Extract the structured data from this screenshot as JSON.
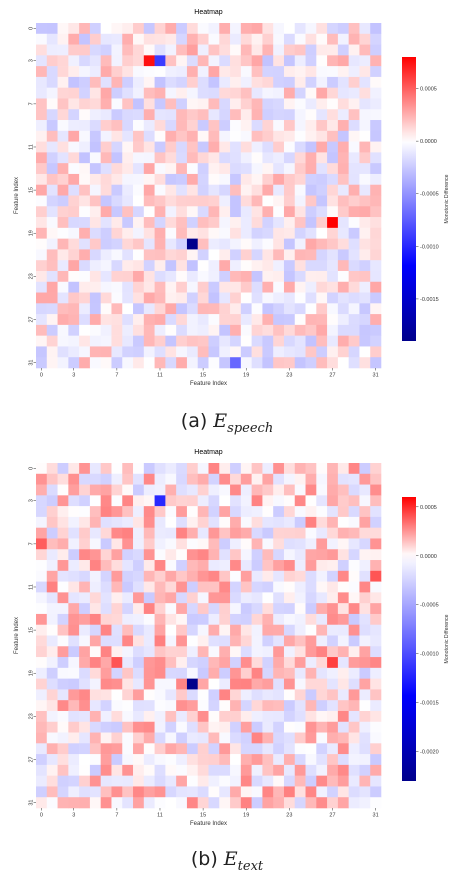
{
  "figure": {
    "panels": [
      {
        "caption_label": "(a)",
        "caption_symbol": "E",
        "caption_subscript": "speech"
      },
      {
        "caption_label": "(b)",
        "caption_symbol": "E",
        "caption_subscript": "text"
      }
    ]
  },
  "chart_data": [
    {
      "type": "heatmap",
      "title": "Heatmap",
      "xlabel": "Feature Index",
      "ylabel": "Feature Index",
      "x_tick_labels": [
        "0",
        "3",
        "7",
        "11",
        "15",
        "19",
        "23",
        "27",
        "31"
      ],
      "y_tick_labels": [
        "0",
        "3",
        "7",
        "11",
        "15",
        "19",
        "23",
        "27",
        "31"
      ],
      "grid_size": [
        32,
        32
      ],
      "colorbar": {
        "label": "Monotonic Difference",
        "ticks": [
          "0.0005",
          "0.0000",
          "-0.0005",
          "-0.0010",
          "-0.0015"
        ],
        "tick_values": [
          0.0005,
          0.0,
          -0.0005,
          -0.001,
          -0.0015
        ],
        "vmin": -0.0019,
        "vmax": 0.0008,
        "colormap": "bwr",
        "colors": {
          "min": "#00008b",
          "mid": "#ffffff",
          "max": "#ff0000"
        }
      },
      "noise_amplitude": 0.00028,
      "notable_cells": [
        {
          "row": 3,
          "col": 10,
          "value": 0.00075
        },
        {
          "row": 3,
          "col": 11,
          "value": -0.0009
        },
        {
          "row": 18,
          "col": 27,
          "value": 0.0008
        },
        {
          "row": 20,
          "col": 14,
          "value": -0.0019
        },
        {
          "row": 31,
          "col": 18,
          "value": -0.0007
        },
        {
          "row": 2,
          "col": 14,
          "value": 0.0003
        },
        {
          "row": 4,
          "col": 16,
          "value": 0.00028
        }
      ]
    },
    {
      "type": "heatmap",
      "title": "Heatmap",
      "xlabel": "Feature Index",
      "ylabel": "Feature Index",
      "x_tick_labels": [
        "0",
        "3",
        "7",
        "11",
        "15",
        "19",
        "23",
        "27",
        "31"
      ],
      "y_tick_labels": [
        "0",
        "3",
        "7",
        "11",
        "15",
        "19",
        "23",
        "27",
        "31"
      ],
      "grid_size": [
        32,
        32
      ],
      "colorbar": {
        "label": "Monotonic Difference",
        "ticks": [
          "0.0005",
          "0.0000",
          "-0.0005",
          "-0.0010",
          "-0.0015",
          "-0.0020"
        ],
        "tick_values": [
          0.0005,
          0.0,
          -0.0005,
          -0.001,
          -0.0015,
          -0.002
        ],
        "vmin": -0.0023,
        "vmax": 0.0006,
        "colormap": "bwr",
        "colors": {
          "min": "#00008b",
          "mid": "#ffffff",
          "max": "#ff0000"
        }
      },
      "noise_amplitude": 0.0003,
      "notable_cells": [
        {
          "row": 3,
          "col": 11,
          "value": -0.0012
        },
        {
          "row": 20,
          "col": 14,
          "value": -0.0023
        },
        {
          "row": 18,
          "col": 27,
          "value": 0.00045
        },
        {
          "row": 10,
          "col": 31,
          "value": 0.0004
        },
        {
          "row": 18,
          "col": 7,
          "value": 0.0004
        },
        {
          "row": 7,
          "col": 0,
          "value": 0.00038
        }
      ]
    }
  ]
}
